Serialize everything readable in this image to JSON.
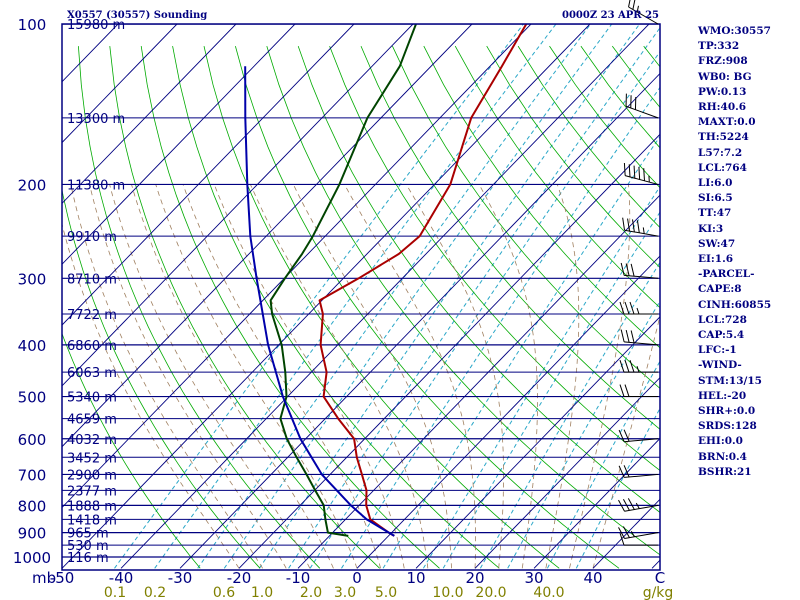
{
  "header": {
    "title": "X0557 (30557) Sounding",
    "time": "0000Z 23 APR 25"
  },
  "stats": [
    "WMO:30557",
    "TP:332",
    "FRZ:908",
    "WB0: BG",
    "PW:0.13",
    "RH:40.6",
    "MAXT:0.0",
    "TH:5224",
    "L57:7.2",
    "LCL:764",
    "LI:6.0",
    "SI:6.5",
    "TT:47",
    "KI:3",
    "SW:47",
    "EI:1.6",
    "-PARCEL-",
    "CAPE:8",
    "CINH:60855",
    "LCL:728",
    "CAP:5.4",
    "LFC:-1",
    "-WIND-",
    "STM:13/15",
    "HEL:-20",
    "SHR+:0.0",
    "SRDS:128",
    "EHI:0.0",
    "BRN:0.4",
    "BSHR:21"
  ],
  "colors": {
    "isobar": "#000080",
    "skewed_isotherm": "#000080",
    "dry_adiabat": "#00aa00",
    "mixing_ratio": "#2aa7c8",
    "moist_adiabat": "#a08060",
    "temperature": "#aa0000",
    "dewpoint": "#004400",
    "parcel": "#0000aa",
    "text": "#000080",
    "mixing_label": "#808000"
  },
  "chart_data": {
    "type": "line",
    "subtype": "skew-T log-P sounding",
    "pressure_axis": {
      "unit": "mb",
      "ticks": [
        100,
        200,
        300,
        400,
        500,
        600,
        700,
        800,
        900,
        1000
      ],
      "range": [
        100,
        1050
      ],
      "log_scale": true
    },
    "temperature_axis": {
      "unit": "C",
      "ticks": [
        -50,
        -40,
        -30,
        -20,
        -10,
        0,
        10,
        20,
        30,
        40
      ],
      "tick_labels": [
        "-50",
        "-40",
        "-30",
        "-20",
        "-10",
        "0",
        "10",
        "20",
        "30",
        "40",
        "C"
      ]
    },
    "mixing_ratio_axis": {
      "unit": "g/kg",
      "labels": [
        "0.1",
        "0.2",
        "0.6",
        "1.0",
        "2.0",
        "3.0",
        "5.0",
        "10.0",
        "20.0",
        "40.0",
        "g/kg"
      ]
    },
    "heights": [
      {
        "p": 100,
        "label": "15980 m"
      },
      {
        "p": 150,
        "label": "13300 m"
      },
      {
        "p": 200,
        "label": "11380 m"
      },
      {
        "p": 250,
        "label": "9910 m"
      },
      {
        "p": 300,
        "label": "8710 m"
      },
      {
        "p": 350,
        "label": "7722 m"
      },
      {
        "p": 400,
        "label": "6860 m"
      },
      {
        "p": 450,
        "label": "6063 m"
      },
      {
        "p": 500,
        "label": "5340 m"
      },
      {
        "p": 550,
        "label": "4659 m"
      },
      {
        "p": 600,
        "label": "4032 m"
      },
      {
        "p": 650,
        "label": "3452 m"
      },
      {
        "p": 700,
        "label": "2900 m"
      },
      {
        "p": 750,
        "label": "2377 m"
      },
      {
        "p": 800,
        "label": "1888 m"
      },
      {
        "p": 850,
        "label": "1418 m"
      },
      {
        "p": 900,
        "label": "965 m"
      },
      {
        "p": 950,
        "label": "530 m"
      },
      {
        "p": 1000,
        "label": "116 m"
      }
    ],
    "series": [
      {
        "id": "temperature",
        "points": [
          {
            "p": 913,
            "t": 1.0
          },
          {
            "p": 900,
            "t": -0.5
          },
          {
            "p": 850,
            "t": -5.8
          },
          {
            "p": 800,
            "t": -8.8
          },
          {
            "p": 750,
            "t": -11.2
          },
          {
            "p": 700,
            "t": -14.6
          },
          {
            "p": 650,
            "t": -18.3
          },
          {
            "p": 600,
            "t": -21.8
          },
          {
            "p": 550,
            "t": -27.8
          },
          {
            "p": 500,
            "t": -33.9
          },
          {
            "p": 450,
            "t": -37.4
          },
          {
            "p": 400,
            "t": -42.9
          },
          {
            "p": 350,
            "t": -47.6
          },
          {
            "p": 330,
            "t": -50.4
          },
          {
            "p": 300,
            "t": -47.4
          },
          {
            "p": 270,
            "t": -44.6
          },
          {
            "p": 250,
            "t": -44.0
          },
          {
            "p": 200,
            "t": -47.3
          },
          {
            "p": 150,
            "t": -54.7
          },
          {
            "p": 120,
            "t": -58.0
          },
          {
            "p": 100,
            "t": -60.8
          }
        ]
      },
      {
        "id": "dewpoint",
        "points": [
          {
            "p": 913,
            "t": -6.8
          },
          {
            "p": 900,
            "t": -10.8
          },
          {
            "p": 850,
            "t": -13.4
          },
          {
            "p": 800,
            "t": -16.0
          },
          {
            "p": 750,
            "t": -19.9
          },
          {
            "p": 700,
            "t": -24.0
          },
          {
            "p": 650,
            "t": -28.5
          },
          {
            "p": 600,
            "t": -33.2
          },
          {
            "p": 550,
            "t": -37.6
          },
          {
            "p": 500,
            "t": -40.2
          },
          {
            "p": 450,
            "t": -44.4
          },
          {
            "p": 400,
            "t": -49.5
          },
          {
            "p": 350,
            "t": -56.2
          },
          {
            "p": 330,
            "t": -58.7
          },
          {
            "p": 300,
            "t": -59.9
          },
          {
            "p": 270,
            "t": -61.0
          },
          {
            "p": 250,
            "t": -62.1
          },
          {
            "p": 200,
            "t": -66.1
          },
          {
            "p": 150,
            "t": -72.3
          },
          {
            "p": 120,
            "t": -75.3
          },
          {
            "p": 100,
            "t": -79.5
          }
        ]
      },
      {
        "id": "parcel",
        "points": [
          {
            "p": 913,
            "t": 1.0
          },
          {
            "p": 850,
            "t": -6.4
          },
          {
            "p": 800,
            "t": -11.4
          },
          {
            "p": 700,
            "t": -21.4
          },
          {
            "p": 600,
            "t": -30.9
          },
          {
            "p": 500,
            "t": -40.8
          },
          {
            "p": 400,
            "t": -51.8
          },
          {
            "p": 300,
            "t": -64.7
          },
          {
            "p": 250,
            "t": -72.7
          },
          {
            "p": 200,
            "t": -81.7
          },
          {
            "p": 150,
            "t": -93.0
          },
          {
            "p": 120,
            "t": -101.5
          }
        ]
      }
    ],
    "wind_barbs": [
      {
        "p": 100,
        "dir": 300,
        "spd": 15
      },
      {
        "p": 150,
        "dir": 290,
        "spd": 30
      },
      {
        "p": 200,
        "dir": 285,
        "spd": 45
      },
      {
        "p": 250,
        "dir": 280,
        "spd": 35
      },
      {
        "p": 300,
        "dir": 275,
        "spd": 30
      },
      {
        "p": 350,
        "dir": 270,
        "spd": 25
      },
      {
        "p": 400,
        "dir": 275,
        "spd": 30
      },
      {
        "p": 450,
        "dir": 270,
        "spd": 25
      },
      {
        "p": 500,
        "dir": 270,
        "spd": 20
      },
      {
        "p": 600,
        "dir": 265,
        "spd": 20
      },
      {
        "p": 700,
        "dir": 265,
        "spd": 20
      },
      {
        "p": 800,
        "dir": 260,
        "spd": 25
      },
      {
        "p": 900,
        "dir": 260,
        "spd": 15
      },
      {
        "p": 950,
        "dir": 270,
        "spd": 10
      }
    ]
  }
}
